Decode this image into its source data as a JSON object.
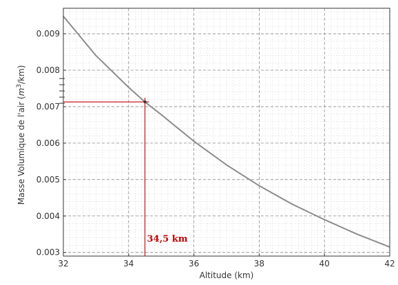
{
  "chart_data": {
    "type": "line",
    "xlabel": "Altitude (km)",
    "ylabel_main": "Masse Volumique de l'air (",
    "ylabel_m": "m",
    "ylabel_exp": "3",
    "ylabel_tail": "/km)",
    "xlim": [
      32,
      42
    ],
    "ylim": [
      0.0029,
      0.0097
    ],
    "xticks": [
      32,
      34,
      36,
      38,
      40,
      42
    ],
    "xtick_labels": [
      "32",
      "34",
      "36",
      "38",
      "40",
      "42"
    ],
    "yticks": [
      0.003,
      0.004,
      0.005,
      0.006,
      0.007,
      0.008,
      0.009
    ],
    "ytick_labels": [
      "0.003",
      "0.004",
      "0.005",
      "0.006",
      "0.007",
      "0.008",
      "0.009"
    ],
    "grid": true,
    "series": [
      {
        "color": "#8c8c8c",
        "x": [
          32,
          33,
          34,
          34.5,
          35,
          36,
          37,
          38,
          39,
          40,
          41,
          42
        ],
        "y": [
          0.00948,
          0.0084,
          0.00753,
          0.00713,
          0.00678,
          0.00605,
          0.0054,
          0.00483,
          0.00433,
          0.0039,
          0.0035,
          0.00315
        ]
      }
    ],
    "annotation": {
      "text": "34,5 km",
      "x": 34.5,
      "y": 0.00713,
      "color": "#c00000"
    }
  }
}
